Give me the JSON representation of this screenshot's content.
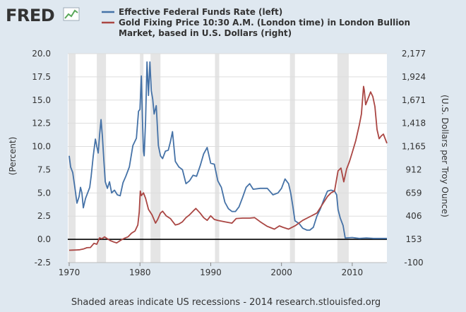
{
  "brand": "FRED",
  "legend": {
    "items": [
      {
        "label_lines": [
          "Effective Federal Funds Rate (left)"
        ],
        "color": "#4572a7"
      },
      {
        "label_lines": [
          "Gold Fixing Price 10:30 A.M. (London time) in London Bullion",
          "Market, based in U.S. Dollars (right)"
        ],
        "color": "#aa4643"
      }
    ]
  },
  "footer": "Shaded areas indicate US recessions - 2014 research.stlouisfed.org",
  "chart_data": {
    "type": "line",
    "xlabel": "",
    "x_ticks": [
      "1970",
      "1980",
      "1990",
      "2000",
      "2010"
    ],
    "xlim": [
      1969.8,
      2014.9
    ],
    "ylabel_left": "(Percent)",
    "ylim_left": [
      -2.5,
      20.0
    ],
    "y_ticks_left": [
      "20.0",
      "17.5",
      "15.0",
      "12.5",
      "10.0",
      "7.5",
      "5.0",
      "2.5",
      "0.0",
      "-2.5"
    ],
    "ylabel_right": "(U.S. Dollars per Troy Ounce)",
    "ylim_right": [
      -100,
      2177
    ],
    "y_ticks_right": [
      "2,177",
      "1,924",
      "1,671",
      "1,418",
      "1,165",
      "912",
      "659",
      "406",
      "153",
      "-100"
    ],
    "grid": "horizontal",
    "recessions": [
      [
        1969.9,
        1970.9
      ],
      [
        1973.9,
        1975.2
      ],
      [
        1980.0,
        1980.5
      ],
      [
        1981.5,
        1982.9
      ],
      [
        1990.6,
        1991.2
      ],
      [
        2001.2,
        2001.9
      ],
      [
        2007.9,
        2009.5
      ]
    ],
    "recession_color": "#e5e5e5",
    "zero_line": 0,
    "series": [
      {
        "name": "Effective Federal Funds Rate (left)",
        "axis": "left",
        "color": "#4572a7",
        "x": [
          1970.0,
          1970.2,
          1970.5,
          1970.8,
          1971.1,
          1971.4,
          1971.6,
          1971.8,
          1972.0,
          1972.3,
          1972.6,
          1972.9,
          1973.1,
          1973.4,
          1973.7,
          1973.9,
          1974.1,
          1974.3,
          1974.5,
          1974.7,
          1974.9,
          1975.1,
          1975.4,
          1975.7,
          1976.0,
          1976.4,
          1976.8,
          1977.2,
          1977.6,
          1978.0,
          1978.5,
          1979.0,
          1979.5,
          1979.8,
          1980.0,
          1980.2,
          1980.35,
          1980.5,
          1980.6,
          1980.8,
          1981.0,
          1981.2,
          1981.4,
          1981.6,
          1981.8,
          1982.0,
          1982.3,
          1982.6,
          1982.9,
          1983.2,
          1983.6,
          1984.0,
          1984.3,
          1984.6,
          1985.0,
          1985.5,
          1986.0,
          1986.5,
          1987.0,
          1987.5,
          1988.0,
          1988.5,
          1989.0,
          1989.5,
          1990.0,
          1990.5,
          1991.0,
          1991.5,
          1992.0,
          1992.5,
          1993.0,
          1993.5,
          1994.0,
          1994.5,
          1995.0,
          1995.5,
          1996.0,
          1997.0,
          1998.0,
          1998.8,
          1999.5,
          2000.0,
          2000.5,
          2001.0,
          2001.3,
          2001.6,
          2001.9,
          2002.5,
          2003.0,
          2003.6,
          2004.0,
          2004.5,
          2005.0,
          2005.5,
          2006.0,
          2006.5,
          2007.0,
          2007.5,
          2007.8,
          2008.0,
          2008.3,
          2008.7,
          2009.0,
          2010.0,
          2011.0,
          2012.0,
          2013.0,
          2014.0,
          2014.9
        ],
        "values": [
          9.0,
          7.8,
          7.2,
          5.6,
          3.9,
          4.6,
          5.6,
          5.0,
          3.4,
          4.4,
          5.0,
          5.6,
          6.8,
          9.0,
          10.8,
          10.0,
          9.3,
          11.3,
          12.9,
          11.0,
          8.5,
          6.2,
          5.5,
          6.2,
          5.0,
          5.3,
          4.8,
          4.7,
          6.1,
          6.8,
          7.8,
          10.1,
          10.9,
          13.8,
          14.0,
          17.6,
          13.0,
          9.5,
          9.0,
          12.8,
          19.1,
          15.5,
          19.1,
          16.0,
          15.1,
          13.5,
          14.4,
          10.1,
          9.0,
          8.7,
          9.5,
          9.6,
          10.5,
          11.6,
          8.4,
          7.8,
          7.5,
          6.0,
          6.3,
          6.9,
          6.8,
          7.9,
          9.2,
          9.9,
          8.2,
          8.1,
          6.3,
          5.6,
          4.0,
          3.3,
          3.0,
          3.0,
          3.5,
          4.5,
          5.6,
          6.0,
          5.4,
          5.5,
          5.5,
          4.8,
          5.0,
          5.5,
          6.5,
          6.0,
          5.0,
          3.6,
          2.0,
          1.7,
          1.2,
          1.0,
          1.0,
          1.3,
          2.5,
          3.3,
          4.3,
          5.2,
          5.3,
          5.2,
          4.8,
          3.2,
          2.3,
          1.5,
          0.15,
          0.2,
          0.1,
          0.15,
          0.1,
          0.1,
          0.1
        ]
      },
      {
        "name": "Gold Fixing Price 10:30 A.M. (London time) in London Bullion Market, based in U.S. Dollars (right)",
        "axis": "right",
        "color": "#aa4643",
        "x": [
          1970.0,
          1970.5,
          1971.0,
          1971.5,
          1972.0,
          1972.5,
          1973.0,
          1973.5,
          1973.9,
          1974.3,
          1974.6,
          1975.0,
          1975.3,
          1975.8,
          1976.3,
          1976.7,
          1977.3,
          1977.8,
          1978.3,
          1978.8,
          1979.3,
          1979.7,
          1979.9,
          1980.05,
          1980.2,
          1980.5,
          1980.8,
          1981.2,
          1981.7,
          1982.2,
          1982.5,
          1982.9,
          1983.2,
          1983.7,
          1984.3,
          1985.0,
          1985.5,
          1986.0,
          1986.5,
          1987.0,
          1987.5,
          1987.9,
          1988.5,
          1989.0,
          1989.5,
          1990.0,
          1990.5,
          1991.0,
          1992.0,
          1993.0,
          1993.6,
          1994.5,
          1995.5,
          1996.2,
          1997.0,
          1998.0,
          1999.0,
          1999.7,
          2000.2,
          2001.0,
          2002.0,
          2003.0,
          2004.0,
          2005.0,
          2006.0,
          2006.5,
          2007.0,
          2007.5,
          2008.0,
          2008.4,
          2008.8,
          2009.2,
          2009.6,
          2010.0,
          2010.5,
          2011.0,
          2011.3,
          2011.6,
          2011.7,
          2011.9,
          2012.2,
          2012.6,
          2012.9,
          2013.2,
          2013.5,
          2013.8,
          2014.1,
          2014.4,
          2014.7,
          2014.9
        ],
        "values": [
          35,
          36,
          38,
          40,
          48,
          62,
          65,
          110,
          100,
          170,
          160,
          180,
          165,
          140,
          125,
          115,
          145,
          165,
          180,
          220,
          245,
          310,
          450,
          680,
          630,
          660,
          600,
          480,
          420,
          330,
          370,
          440,
          460,
          410,
          380,
          310,
          320,
          345,
          390,
          420,
          460,
          490,
          440,
          390,
          360,
          410,
          370,
          360,
          345,
          330,
          380,
          385,
          385,
          390,
          345,
          295,
          265,
          300,
          285,
          265,
          305,
          360,
          400,
          440,
          560,
          620,
          660,
          680,
          900,
          930,
          780,
          920,
          1000,
          1100,
          1230,
          1400,
          1520,
          1820,
          1780,
          1620,
          1680,
          1760,
          1710,
          1600,
          1350,
          1250,
          1280,
          1300,
          1240,
          1200
        ]
      }
    ]
  }
}
